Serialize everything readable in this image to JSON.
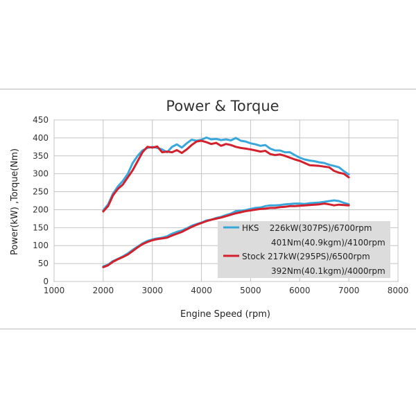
{
  "chart_data": {
    "type": "line",
    "title": "Power & Torque",
    "xlabel": "Engine Speed (rpm)",
    "ylabel": "Power(kW) ,Torque(Nm)",
    "xlim": [
      1000,
      8000
    ],
    "ylim": [
      0,
      450
    ],
    "xticks": [
      1000,
      2000,
      3000,
      4000,
      5000,
      6000,
      7000,
      8000
    ],
    "yticks": [
      0,
      50,
      100,
      150,
      200,
      250,
      300,
      350,
      400,
      450
    ],
    "grid": true,
    "legend_position": "bottom-right",
    "series": [
      {
        "name": "HKS",
        "color": "#3aa7dc",
        "legend_lines": [
          "HKS    226kW(307PS)/6700rpm",
          "401Nm(40.9kgm)/4100rpm"
        ],
        "torque": {
          "x": [
            2000,
            2100,
            2200,
            2300,
            2400,
            2500,
            2600,
            2700,
            2800,
            2900,
            3000,
            3100,
            3200,
            3300,
            3400,
            3500,
            3600,
            3700,
            3800,
            3900,
            4000,
            4100,
            4200,
            4300,
            4400,
            4500,
            4600,
            4700,
            4800,
            4900,
            5000,
            5100,
            5200,
            5300,
            5400,
            5500,
            5600,
            5700,
            5800,
            5900,
            6000,
            6100,
            6200,
            6300,
            6400,
            6500,
            6600,
            6700,
            6800,
            6900,
            7000
          ],
          "y": [
            198,
            215,
            245,
            265,
            280,
            300,
            330,
            350,
            365,
            372,
            375,
            372,
            368,
            360,
            375,
            382,
            373,
            385,
            395,
            392,
            395,
            401,
            396,
            397,
            394,
            396,
            393,
            400,
            392,
            390,
            385,
            382,
            378,
            380,
            370,
            365,
            365,
            360,
            360,
            352,
            345,
            340,
            337,
            335,
            332,
            330,
            325,
            322,
            318,
            307,
            298
          ]
        },
        "power": {
          "x": [
            2000,
            2100,
            2200,
            2300,
            2400,
            2500,
            2600,
            2700,
            2800,
            2900,
            3000,
            3100,
            3200,
            3300,
            3400,
            3500,
            3600,
            3700,
            3800,
            3900,
            4000,
            4100,
            4200,
            4300,
            4400,
            4500,
            4600,
            4700,
            4800,
            4900,
            5000,
            5100,
            5200,
            5300,
            5400,
            5500,
            5600,
            5700,
            5800,
            5900,
            6000,
            6100,
            6200,
            6300,
            6400,
            6500,
            6600,
            6700,
            6800,
            6900,
            7000
          ],
          "y": [
            42,
            47,
            57,
            63,
            70,
            78,
            88,
            97,
            106,
            113,
            117,
            120,
            122,
            126,
            133,
            138,
            142,
            148,
            155,
            160,
            164,
            170,
            172,
            177,
            180,
            185,
            189,
            196,
            197,
            199,
            202,
            205,
            206,
            210,
            212,
            212,
            213,
            215,
            216,
            217,
            217,
            216,
            218,
            219,
            220,
            222,
            224,
            226,
            224,
            219,
            215
          ]
        }
      },
      {
        "name": "Stock",
        "color": "#d3202d",
        "legend_lines": [
          "Stock 217kW(295PS)/6500rpm",
          "392Nm(40.1kgm)/4000rpm"
        ],
        "torque": {
          "x": [
            2000,
            2100,
            2200,
            2300,
            2400,
            2500,
            2600,
            2700,
            2800,
            2900,
            3000,
            3100,
            3200,
            3300,
            3400,
            3500,
            3600,
            3700,
            3800,
            3900,
            4000,
            4100,
            4200,
            4300,
            4400,
            4500,
            4600,
            4700,
            4800,
            4900,
            5000,
            5100,
            5200,
            5300,
            5400,
            5500,
            5600,
            5700,
            5800,
            5900,
            6000,
            6100,
            6200,
            6300,
            6400,
            6500,
            6600,
            6700,
            6800,
            6900,
            7000
          ],
          "y": [
            195,
            210,
            240,
            258,
            270,
            290,
            310,
            335,
            360,
            375,
            373,
            376,
            360,
            362,
            360,
            366,
            358,
            368,
            380,
            390,
            392,
            388,
            383,
            386,
            378,
            383,
            380,
            375,
            372,
            370,
            368,
            365,
            362,
            364,
            355,
            352,
            354,
            350,
            345,
            340,
            336,
            330,
            324,
            323,
            322,
            320,
            318,
            308,
            303,
            300,
            290
          ]
        },
        "power": {
          "x": [
            2000,
            2100,
            2200,
            2300,
            2400,
            2500,
            2600,
            2700,
            2800,
            2900,
            3000,
            3100,
            3200,
            3300,
            3400,
            3500,
            3600,
            3700,
            3800,
            3900,
            4000,
            4100,
            4200,
            4300,
            4400,
            4500,
            4600,
            4700,
            4800,
            4900,
            5000,
            5100,
            5200,
            5300,
            5400,
            5500,
            5600,
            5700,
            5800,
            5900,
            6000,
            6100,
            6200,
            6300,
            6400,
            6500,
            6600,
            6700,
            6800,
            6900,
            7000
          ],
          "y": [
            40,
            45,
            55,
            62,
            68,
            75,
            85,
            95,
            104,
            110,
            115,
            118,
            120,
            122,
            128,
            133,
            138,
            145,
            152,
            158,
            163,
            168,
            172,
            175,
            178,
            182,
            186,
            190,
            193,
            196,
            198,
            200,
            202,
            203,
            205,
            205,
            207,
            208,
            210,
            210,
            211,
            212,
            213,
            214,
            215,
            217,
            215,
            212,
            214,
            213,
            212
          ]
        }
      }
    ]
  }
}
